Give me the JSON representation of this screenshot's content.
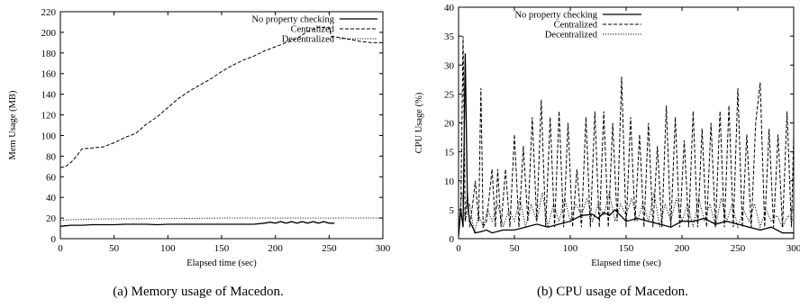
{
  "chart_data": [
    {
      "type": "line",
      "xlabel": "Elapsed time (sec)",
      "ylabel": "Mem Usage (MB)",
      "xlim": [
        0,
        300
      ],
      "ylim": [
        0,
        220
      ],
      "xticks": [
        0,
        50,
        100,
        150,
        200,
        250,
        300
      ],
      "yticks": [
        0,
        20,
        40,
        60,
        80,
        100,
        120,
        140,
        160,
        180,
        200,
        220
      ],
      "legend_position": "top-left",
      "caption": "(a)  Memory usage of Macedon.",
      "series": [
        {
          "name": "No property checking",
          "style": "solid",
          "x": [
            0,
            5,
            10,
            20,
            30,
            40,
            50,
            60,
            70,
            80,
            90,
            100,
            110,
            120,
            130,
            140,
            150,
            160,
            170,
            180,
            190,
            195,
            200,
            205,
            210,
            215,
            220,
            225,
            230,
            235,
            240,
            245,
            250,
            255
          ],
          "y": [
            12,
            12.5,
            13,
            13,
            13.5,
            13.5,
            13.5,
            14,
            14,
            14,
            13.5,
            14,
            14,
            14,
            14,
            14,
            14,
            14,
            14,
            14,
            15,
            16,
            15,
            16.5,
            15,
            16.5,
            15,
            16.5,
            15,
            16.5,
            15,
            16.5,
            15,
            15
          ]
        },
        {
          "name": "Centralized",
          "style": "dashed",
          "x": [
            0,
            5,
            10,
            15,
            20,
            30,
            40,
            50,
            60,
            70,
            80,
            90,
            100,
            110,
            120,
            130,
            140,
            150,
            160,
            170,
            180,
            190,
            200,
            210,
            220,
            230,
            240,
            250,
            252,
            260,
            270,
            280,
            290,
            300
          ],
          "y": [
            69,
            70,
            74,
            80,
            87,
            88,
            89,
            93,
            98,
            102,
            111,
            118,
            127,
            136,
            143,
            149,
            155,
            162,
            168,
            173,
            177,
            182,
            186,
            190,
            194,
            201,
            205,
            205,
            196,
            195,
            193,
            191,
            190,
            190
          ]
        },
        {
          "name": "Decentralized",
          "style": "dotted",
          "x": [
            0,
            30,
            100,
            150,
            200,
            250,
            300
          ],
          "y": [
            18,
            19,
            19.5,
            20,
            20,
            20,
            20
          ]
        }
      ]
    },
    {
      "type": "line",
      "xlabel": "Elapsed time (sec)",
      "ylabel": "CPU Usage (%)",
      "xlim": [
        0,
        300
      ],
      "ylim": [
        0,
        40
      ],
      "xticks": [
        0,
        50,
        100,
        150,
        200,
        250,
        300
      ],
      "yticks": [
        0,
        5,
        10,
        15,
        20,
        25,
        30,
        35,
        40
      ],
      "legend_position": "top-left",
      "caption": "(b)  CPU usage of Macedon.",
      "series": [
        {
          "name": "No property checking",
          "style": "solid",
          "x": [
            0,
            2,
            4,
            6,
            8,
            10,
            15,
            20,
            25,
            30,
            40,
            50,
            60,
            70,
            80,
            90,
            100,
            110,
            120,
            125,
            130,
            135,
            140,
            145,
            150,
            160,
            170,
            180,
            190,
            200,
            210,
            220,
            230,
            240,
            250,
            260,
            270,
            280,
            290,
            300
          ],
          "y": [
            0.5,
            5,
            2,
            32,
            6,
            3,
            1,
            1.2,
            1.5,
            1,
            1.5,
            1.5,
            2,
            2.5,
            2,
            2.5,
            3,
            4,
            4.2,
            3.5,
            4.5,
            4,
            5,
            4,
            3,
            3.5,
            3,
            2.5,
            2,
            3,
            3,
            3.5,
            2.5,
            3,
            2.5,
            2,
            1.5,
            2,
            1,
            1
          ]
        },
        {
          "name": "Centralized",
          "style": "dashed",
          "x": [
            0,
            2,
            4,
            6,
            8,
            10,
            12,
            15,
            18,
            20,
            22,
            25,
            30,
            33,
            35,
            38,
            42,
            46,
            50,
            54,
            58,
            62,
            66,
            70,
            74,
            78,
            82,
            86,
            90,
            94,
            98,
            102,
            106,
            110,
            114,
            118,
            122,
            126,
            130,
            134,
            138,
            142,
            146,
            150,
            154,
            158,
            162,
            166,
            170,
            174,
            178,
            182,
            186,
            190,
            194,
            198,
            202,
            206,
            210,
            214,
            218,
            222,
            226,
            230,
            234,
            238,
            242,
            246,
            250,
            254,
            258,
            262,
            266,
            270,
            274,
            278,
            282,
            286,
            290,
            294,
            298,
            300
          ],
          "y": [
            1,
            5,
            35,
            3,
            8,
            2,
            5,
            10,
            3,
            26,
            2,
            3,
            12,
            2,
            12,
            2,
            12,
            2,
            18,
            2,
            16,
            3,
            21,
            3,
            24,
            2,
            21,
            2,
            22,
            2,
            20,
            2,
            12,
            2,
            21,
            2,
            22,
            2,
            22,
            2,
            20,
            3,
            28,
            2,
            21,
            3,
            18,
            2,
            20,
            2,
            16,
            2,
            23,
            2,
            21,
            2,
            17,
            2,
            22,
            2,
            19,
            2,
            20,
            2,
            22,
            2,
            23,
            2,
            26,
            2,
            18,
            2,
            20,
            27,
            2,
            19,
            2,
            18,
            2,
            22,
            2,
            18
          ]
        },
        {
          "name": "Decentralized",
          "style": "dotted",
          "x": [
            0,
            3,
            6,
            10,
            14,
            18,
            22,
            26,
            30,
            35,
            40,
            45,
            50,
            55,
            60,
            65,
            70,
            75,
            80,
            85,
            90,
            95,
            100,
            105,
            110,
            115,
            120,
            125,
            130,
            135,
            140,
            145,
            150,
            155,
            160,
            165,
            170,
            175,
            180,
            185,
            190,
            195,
            200,
            205,
            210,
            215,
            220,
            225,
            230,
            235,
            240,
            245,
            250,
            255,
            260,
            265,
            270,
            275,
            280,
            285,
            290,
            295,
            300
          ],
          "y": [
            2,
            8,
            3,
            6,
            1,
            4,
            2,
            5,
            3,
            6,
            2,
            5,
            3,
            7,
            2,
            6,
            3,
            8,
            2,
            6,
            3,
            7,
            3,
            6,
            4,
            7,
            3,
            6,
            4,
            8,
            3,
            6,
            4,
            7,
            3,
            6,
            3,
            8,
            2,
            6,
            3,
            7,
            3,
            6,
            2,
            7,
            3,
            6,
            2,
            7,
            3,
            6,
            2,
            5,
            3,
            6,
            2,
            5,
            3,
            4,
            2,
            4,
            3
          ]
        }
      ]
    }
  ]
}
